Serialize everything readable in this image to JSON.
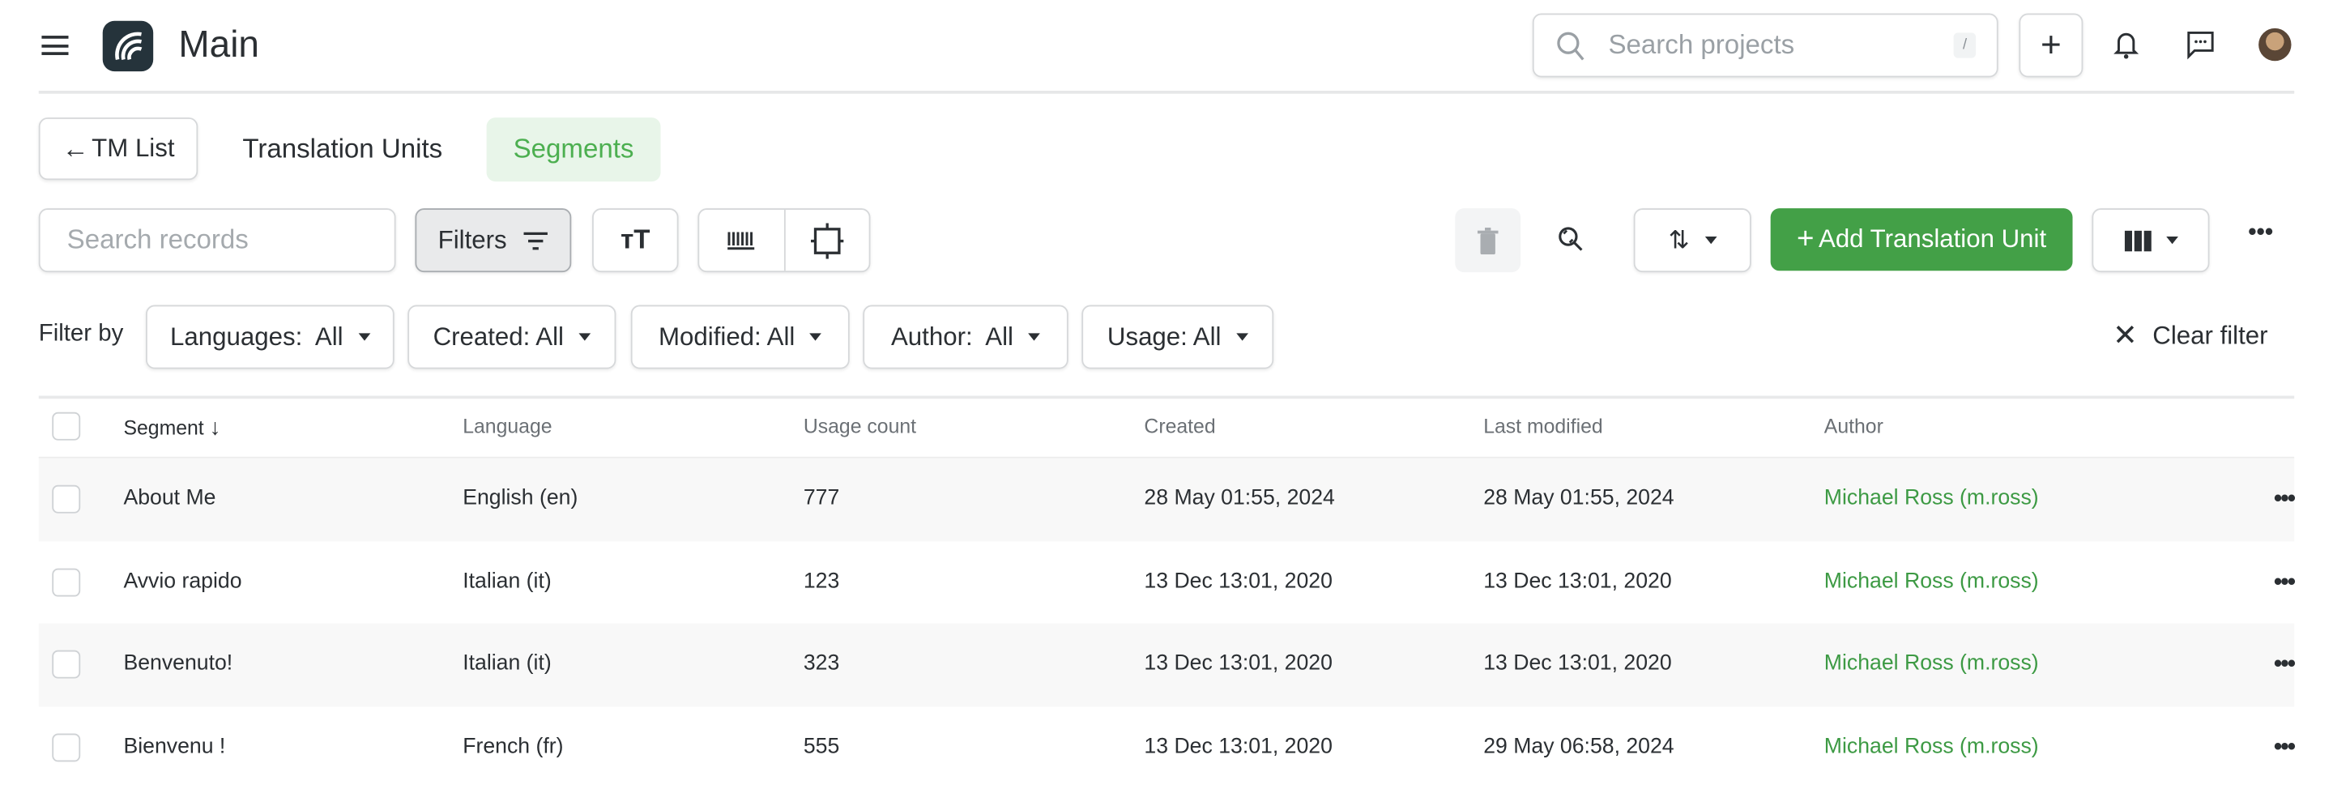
{
  "header": {
    "title": "Main",
    "search_placeholder": "Search projects",
    "search_shortcut": "/",
    "icons": [
      "menu-icon",
      "logo-icon",
      "search-icon",
      "plus-icon",
      "bell-icon",
      "chat-icon",
      "avatar"
    ]
  },
  "tabs": [
    {
      "label": "TM List"
    },
    {
      "label": "Translation Units"
    },
    {
      "label": "Segments",
      "active": true
    }
  ],
  "toolbar": {
    "search_placeholder": "Search records",
    "filters_label": "Filters",
    "add_label": "Add Translation Unit",
    "accent": "#43a047"
  },
  "filter_bar": {
    "label": "Filter by",
    "filters": [
      "Languages:  All",
      "Created: All",
      "Modified: All",
      "Author:  All",
      "Usage: All"
    ],
    "clear_label": "Clear filter"
  },
  "table": {
    "columns": [
      "Segment",
      "Language",
      "Usage count",
      "Created",
      "Last modified",
      "Author"
    ],
    "rows": [
      [
        "About Me",
        "English (en)",
        "777",
        "28 May 01:55, 2024",
        "28 May 01:55, 2024",
        "Michael Ross (m.ross)"
      ],
      [
        "Avvio rapido",
        "Italian (it)",
        "123",
        "13 Dec 13:01, 2020",
        "13 Dec 13:01, 2020",
        "Michael Ross (m.ross)"
      ],
      [
        "Benvenuto!",
        "Italian (it)",
        "323",
        "13 Dec 13:01, 2020",
        "13 Dec 13:01, 2020",
        "Michael Ross (m.ross)"
      ],
      [
        "Bienvenu !",
        "French (fr)",
        "555",
        "13 Dec 13:01, 2020",
        "29 May 06:58, 2024",
        "Michael Ross (m.ross)"
      ]
    ]
  }
}
